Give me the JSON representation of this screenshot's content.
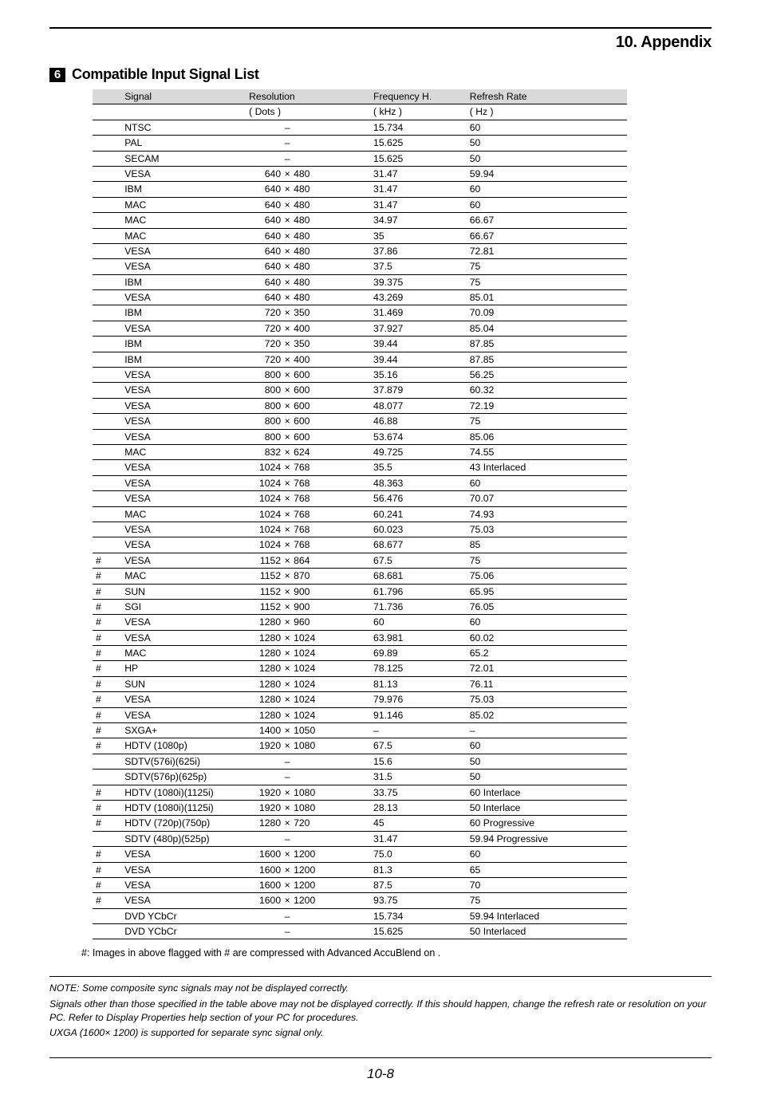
{
  "header": {
    "title": "10. Appendix"
  },
  "section": {
    "badge": "6",
    "title": "Compatible Input Signal List"
  },
  "table": {
    "head_r1": {
      "c1": "",
      "c2": "Signal",
      "c3": "Resolution",
      "c4": "Frequency H.",
      "c5": "Refresh Rate"
    },
    "head_r2": {
      "c1": "",
      "c2": "",
      "c3": "( Dots )",
      "c4": "( kHz )",
      "c5": "( Hz )"
    },
    "rows": [
      {
        "m": "",
        "s": "NTSC",
        "rw": "",
        "rx": "",
        "rh": "",
        "dash": "–",
        "fh": "15.734",
        "rr": "60"
      },
      {
        "m": "",
        "s": "PAL",
        "rw": "",
        "rx": "",
        "rh": "",
        "dash": "–",
        "fh": "15.625",
        "rr": "50"
      },
      {
        "m": "",
        "s": "SECAM",
        "rw": "",
        "rx": "",
        "rh": "",
        "dash": "–",
        "fh": "15.625",
        "rr": "50"
      },
      {
        "m": "",
        "s": "VESA",
        "rw": "640",
        "rx": "×",
        "rh": "480",
        "dash": "",
        "fh": "31.47",
        "rr": "59.94"
      },
      {
        "m": "",
        "s": "IBM",
        "rw": "640",
        "rx": "×",
        "rh": "480",
        "dash": "",
        "fh": "31.47",
        "rr": "60"
      },
      {
        "m": "",
        "s": "MAC",
        "rw": "640",
        "rx": "×",
        "rh": "480",
        "dash": "",
        "fh": "31.47",
        "rr": "60"
      },
      {
        "m": "",
        "s": "MAC",
        "rw": "640",
        "rx": "×",
        "rh": "480",
        "dash": "",
        "fh": "34.97",
        "rr": "66.67"
      },
      {
        "m": "",
        "s": "MAC",
        "rw": "640",
        "rx": "×",
        "rh": "480",
        "dash": "",
        "fh": "35",
        "rr": "66.67"
      },
      {
        "m": "",
        "s": "VESA",
        "rw": "640",
        "rx": "×",
        "rh": "480",
        "dash": "",
        "fh": "37.86",
        "rr": "72.81"
      },
      {
        "m": "",
        "s": "VESA",
        "rw": "640",
        "rx": "×",
        "rh": "480",
        "dash": "",
        "fh": "37.5",
        "rr": "75"
      },
      {
        "m": "",
        "s": "IBM",
        "rw": "640",
        "rx": "×",
        "rh": "480",
        "dash": "",
        "fh": "39.375",
        "rr": "75"
      },
      {
        "m": "",
        "s": "VESA",
        "rw": "640",
        "rx": "×",
        "rh": "480",
        "dash": "",
        "fh": "43.269",
        "rr": "85.01"
      },
      {
        "m": "",
        "s": "IBM",
        "rw": "720",
        "rx": "×",
        "rh": "350",
        "dash": "",
        "fh": "31.469",
        "rr": "70.09"
      },
      {
        "m": "",
        "s": "VESA",
        "rw": "720",
        "rx": "×",
        "rh": "400",
        "dash": "",
        "fh": "37.927",
        "rr": "85.04"
      },
      {
        "m": "",
        "s": "IBM",
        "rw": "720",
        "rx": "×",
        "rh": "350",
        "dash": "",
        "fh": "39.44",
        "rr": "87.85"
      },
      {
        "m": "",
        "s": "IBM",
        "rw": "720",
        "rx": "×",
        "rh": "400",
        "dash": "",
        "fh": "39.44",
        "rr": "87.85"
      },
      {
        "m": "",
        "s": "VESA",
        "rw": "800",
        "rx": "×",
        "rh": "600",
        "dash": "",
        "fh": "35.16",
        "rr": "56.25"
      },
      {
        "m": "",
        "s": "VESA",
        "rw": "800",
        "rx": "×",
        "rh": "600",
        "dash": "",
        "fh": "37.879",
        "rr": "60.32"
      },
      {
        "m": "",
        "s": "VESA",
        "rw": "800",
        "rx": "×",
        "rh": "600",
        "dash": "",
        "fh": "48.077",
        "rr": "72.19"
      },
      {
        "m": "",
        "s": "VESA",
        "rw": "800",
        "rx": "×",
        "rh": "600",
        "dash": "",
        "fh": "46.88",
        "rr": "75"
      },
      {
        "m": "",
        "s": "VESA",
        "rw": "800",
        "rx": "×",
        "rh": "600",
        "dash": "",
        "fh": "53.674",
        "rr": "85.06"
      },
      {
        "m": "",
        "s": "MAC",
        "rw": "832",
        "rx": "×",
        "rh": "624",
        "dash": "",
        "fh": "49.725",
        "rr": "74.55"
      },
      {
        "m": "",
        "s": "VESA",
        "rw": "1024",
        "rx": "×",
        "rh": "768",
        "dash": "",
        "fh": "35.5",
        "rr": "43 Interlaced"
      },
      {
        "m": "",
        "s": "VESA",
        "rw": "1024",
        "rx": "×",
        "rh": "768",
        "dash": "",
        "fh": "48.363",
        "rr": "60"
      },
      {
        "m": "",
        "s": "VESA",
        "rw": "1024",
        "rx": "×",
        "rh": "768",
        "dash": "",
        "fh": "56.476",
        "rr": "70.07"
      },
      {
        "m": "",
        "s": "MAC",
        "rw": "1024",
        "rx": "×",
        "rh": "768",
        "dash": "",
        "fh": "60.241",
        "rr": "74.93"
      },
      {
        "m": "",
        "s": "VESA",
        "rw": "1024",
        "rx": "×",
        "rh": "768",
        "dash": "",
        "fh": "60.023",
        "rr": "75.03"
      },
      {
        "m": "",
        "s": "VESA",
        "rw": "1024",
        "rx": "×",
        "rh": "768",
        "dash": "",
        "fh": "68.677",
        "rr": "85"
      },
      {
        "m": "#",
        "s": "VESA",
        "rw": "1152",
        "rx": "×",
        "rh": "864",
        "dash": "",
        "fh": "67.5",
        "rr": "75"
      },
      {
        "m": "#",
        "s": "MAC",
        "rw": "1152",
        "rx": "×",
        "rh": "870",
        "dash": "",
        "fh": "68.681",
        "rr": "75.06"
      },
      {
        "m": "#",
        "s": "SUN",
        "rw": "1152",
        "rx": "×",
        "rh": "900",
        "dash": "",
        "fh": "61.796",
        "rr": "65.95"
      },
      {
        "m": "#",
        "s": "SGI",
        "rw": "1152",
        "rx": "×",
        "rh": "900",
        "dash": "",
        "fh": "71.736",
        "rr": "76.05"
      },
      {
        "m": "#",
        "s": "VESA",
        "rw": "1280",
        "rx": "×",
        "rh": "960",
        "dash": "",
        "fh": "60",
        "rr": "60"
      },
      {
        "m": "#",
        "s": "VESA",
        "rw": "1280",
        "rx": "×",
        "rh": "1024",
        "dash": "",
        "fh": "63.981",
        "rr": "60.02"
      },
      {
        "m": "#",
        "s": "MAC",
        "rw": "1280",
        "rx": "×",
        "rh": "1024",
        "dash": "",
        "fh": "69.89",
        "rr": "65.2"
      },
      {
        "m": "#",
        "s": "HP",
        "rw": "1280",
        "rx": "×",
        "rh": "1024",
        "dash": "",
        "fh": "78.125",
        "rr": "72.01"
      },
      {
        "m": "#",
        "s": "SUN",
        "rw": "1280",
        "rx": "×",
        "rh": "1024",
        "dash": "",
        "fh": "81.13",
        "rr": "76.11"
      },
      {
        "m": "#",
        "s": "VESA",
        "rw": "1280",
        "rx": "×",
        "rh": "1024",
        "dash": "",
        "fh": "79.976",
        "rr": "75.03"
      },
      {
        "m": "#",
        "s": "VESA",
        "rw": "1280",
        "rx": "×",
        "rh": "1024",
        "dash": "",
        "fh": "91.146",
        "rr": "85.02"
      },
      {
        "m": "#",
        "s": "SXGA+",
        "rw": "1400",
        "rx": "×",
        "rh": "1050",
        "dash": "",
        "fh": "–",
        "rr": "–"
      },
      {
        "m": "#",
        "s": "HDTV (1080p)",
        "rw": "1920",
        "rx": "×",
        "rh": "1080",
        "dash": "",
        "fh": "67.5",
        "rr": "60"
      },
      {
        "m": "",
        "s": "SDTV(576i)(625i)",
        "rw": "",
        "rx": "",
        "rh": "",
        "dash": "–",
        "fh": "15.6",
        "rr": "50"
      },
      {
        "m": "",
        "s": "SDTV(576p)(625p)",
        "rw": "",
        "rx": "",
        "rh": "",
        "dash": "–",
        "fh": "31.5",
        "rr": "50"
      },
      {
        "m": "#",
        "s": "HDTV (1080i)(1125i)",
        "rw": "1920",
        "rx": "×",
        "rh": "1080",
        "dash": "",
        "fh": "33.75",
        "rr": "60 Interlace"
      },
      {
        "m": "#",
        "s": "HDTV (1080i)(1125i)",
        "rw": "1920",
        "rx": "×",
        "rh": "1080",
        "dash": "",
        "fh": "28.13",
        "rr": "50 Interlace"
      },
      {
        "m": "#",
        "s": "HDTV (720p)(750p)",
        "rw": "1280",
        "rx": "×",
        "rh": "720",
        "dash": "",
        "fh": "45",
        "rr": "60 Progressive"
      },
      {
        "m": "",
        "s": "SDTV (480p)(525p)",
        "rw": "",
        "rx": "",
        "rh": "",
        "dash": "–",
        "fh": "31.47",
        "rr": "59.94 Progressive"
      },
      {
        "m": "#",
        "s": "VESA",
        "rw": "1600",
        "rx": "×",
        "rh": "1200",
        "dash": "",
        "fh": "75.0",
        "rr": "60"
      },
      {
        "m": "#",
        "s": "VESA",
        "rw": "1600",
        "rx": "×",
        "rh": "1200",
        "dash": "",
        "fh": "81.3",
        "rr": "65"
      },
      {
        "m": "#",
        "s": "VESA",
        "rw": "1600",
        "rx": "×",
        "rh": "1200",
        "dash": "",
        "fh": "87.5",
        "rr": "70"
      },
      {
        "m": "#",
        "s": "VESA",
        "rw": "1600",
        "rx": "×",
        "rh": "1200",
        "dash": "",
        "fh": "93.75",
        "rr": "75"
      },
      {
        "m": "",
        "s": "DVD YCbCr",
        "rw": "",
        "rx": "",
        "rh": "",
        "dash": "–",
        "fh": "15.734",
        "rr": "59.94 Interlaced"
      },
      {
        "m": "",
        "s": "DVD YCbCr",
        "rw": "",
        "rx": "",
        "rh": "",
        "dash": "–",
        "fh": "15.625",
        "rr": "50 Interlaced"
      }
    ]
  },
  "footnote": "#:  Images in above flagged with # are compressed with Advanced AccuBlend on              .",
  "notes": {
    "p1": "NOTE: Some composite sync signals may not be displayed correctly.",
    "p2": "Signals other than those specified in the table above may not be displayed correctly. If this should happen, change the refresh rate or resolution on your PC. Refer to Display Properties help section of your PC for procedures.",
    "p3": "UXGA (1600× 1200) is supported for separate sync signal only."
  },
  "page_num": "10-8"
}
